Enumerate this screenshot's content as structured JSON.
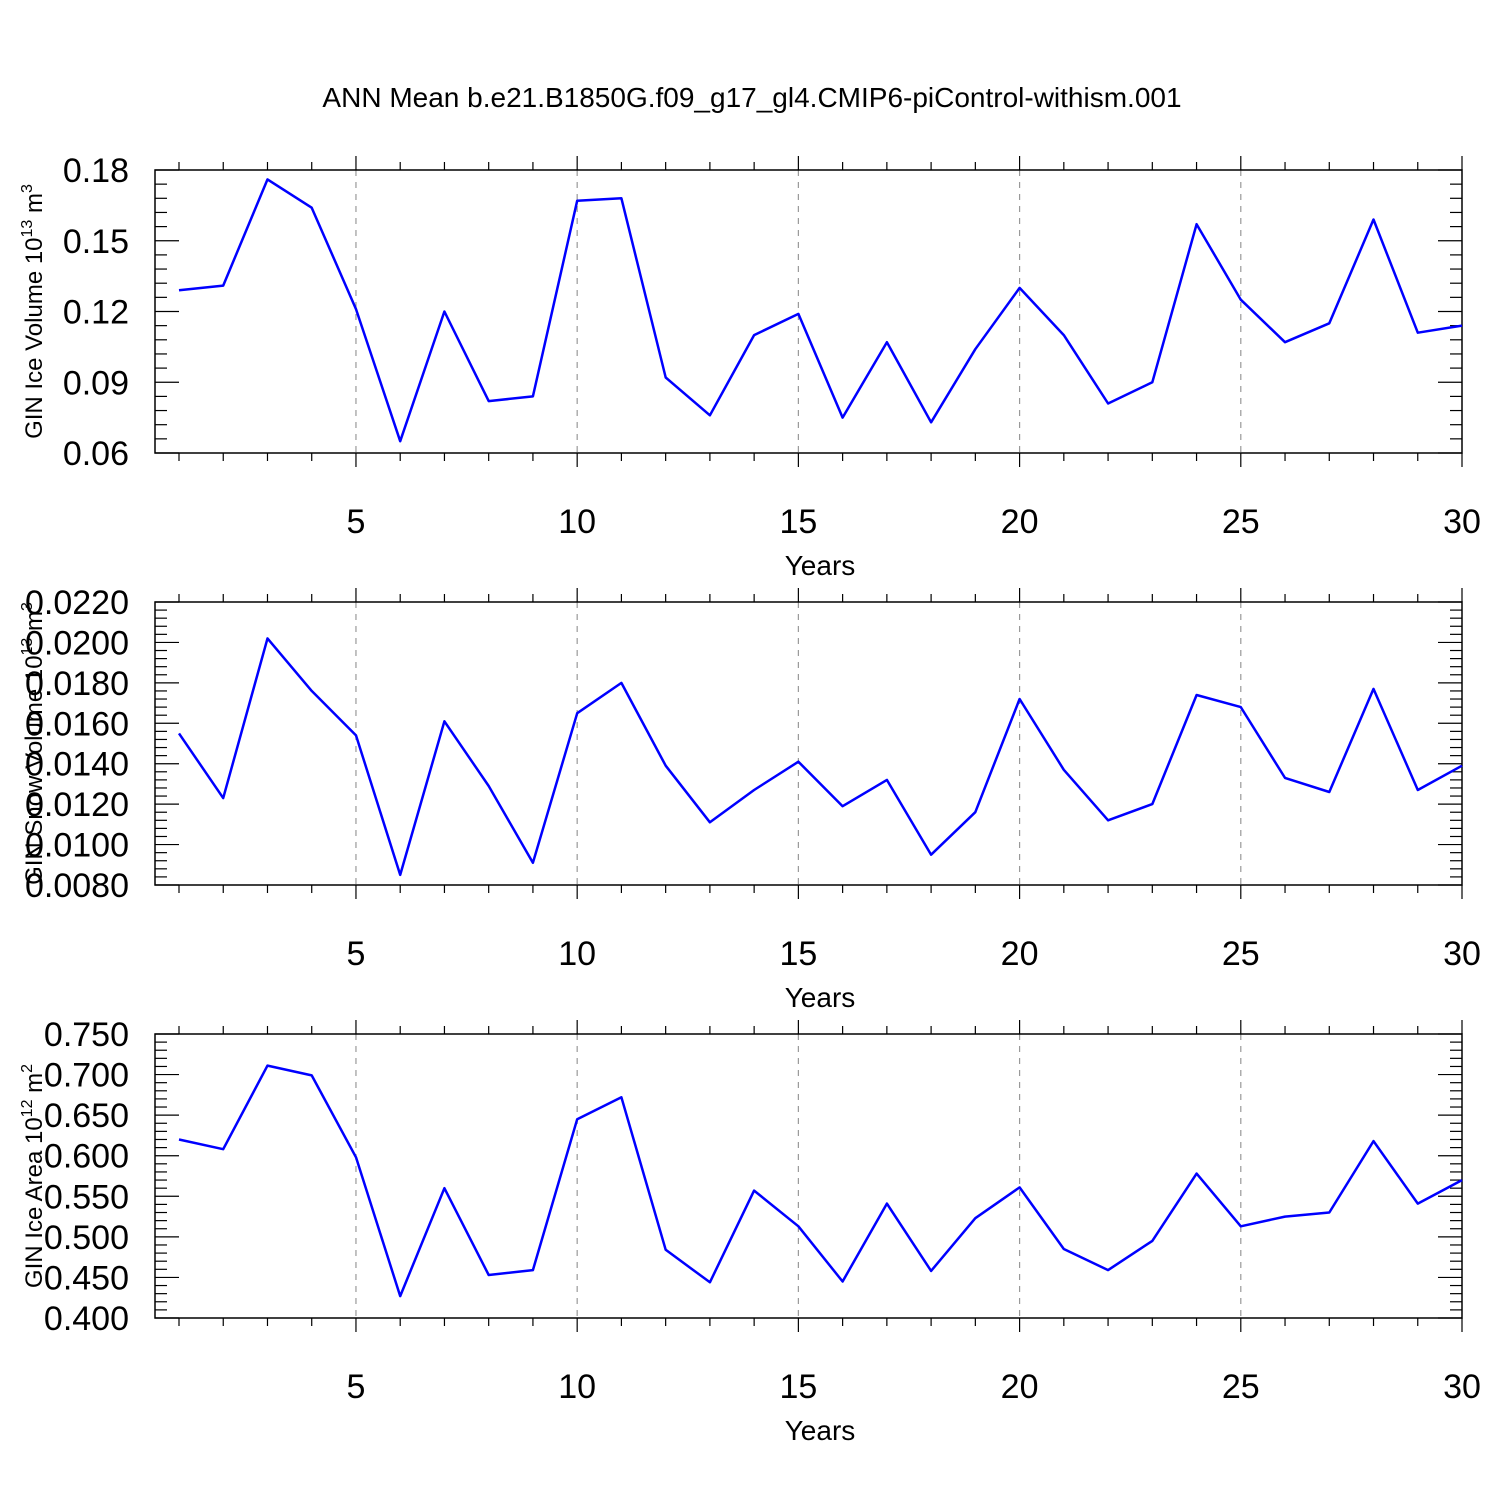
{
  "title": "ANN Mean b.e21.B1850G.f09_g17_gl4.CMIP6-piControl-withism.001",
  "series_color": "#0000ff",
  "chart_data": [
    {
      "type": "line",
      "title": "ANN Mean b.e21.B1850G.f09_g17_gl4.CMIP6-piControl-withism.001",
      "xlabel": "Years",
      "ylabel": "GIN Ice Volume 10",
      "ylabel_sup1": "13",
      "ylabel_mid": " m",
      "ylabel_sup2": "3",
      "x_ticks": [
        5,
        10,
        15,
        20,
        25,
        30
      ],
      "xlim": [
        1,
        30
      ],
      "ylim": [
        0.06,
        0.18
      ],
      "y_ticks": [
        "0.06",
        "0.09",
        "0.12",
        "0.15",
        "0.18"
      ],
      "grid": "dashed vertical at x ticks",
      "x": [
        1,
        2,
        3,
        4,
        5,
        6,
        7,
        8,
        9,
        10,
        11,
        12,
        13,
        14,
        15,
        16,
        17,
        18,
        19,
        20,
        21,
        22,
        23,
        24,
        25,
        26,
        27,
        28,
        29,
        30
      ],
      "values": [
        0.129,
        0.131,
        0.176,
        0.164,
        0.121,
        0.065,
        0.12,
        0.082,
        0.084,
        0.167,
        0.168,
        0.092,
        0.076,
        0.11,
        0.119,
        0.075,
        0.107,
        0.073,
        0.104,
        0.13,
        0.11,
        0.081,
        0.09,
        0.157,
        0.125,
        0.107,
        0.115,
        0.159,
        0.111,
        0.114
      ]
    },
    {
      "type": "line",
      "xlabel": "Years",
      "ylabel": "GIN Snow Volume 10",
      "ylabel_sup1": "13",
      "ylabel_mid": " m",
      "ylabel_sup2": "3",
      "x_ticks": [
        5,
        10,
        15,
        20,
        25,
        30
      ],
      "xlim": [
        1,
        30
      ],
      "ylim": [
        0.008,
        0.022
      ],
      "y_ticks": [
        "0.0080",
        "0.0100",
        "0.0120",
        "0.0140",
        "0.0160",
        "0.0180",
        "0.0200",
        "0.0220"
      ],
      "grid": "dashed vertical at x ticks",
      "x": [
        1,
        2,
        3,
        4,
        5,
        6,
        7,
        8,
        9,
        10,
        11,
        12,
        13,
        14,
        15,
        16,
        17,
        18,
        19,
        20,
        21,
        22,
        23,
        24,
        25,
        26,
        27,
        28,
        29,
        30
      ],
      "values": [
        0.0155,
        0.0123,
        0.0202,
        0.0176,
        0.0154,
        0.0085,
        0.0161,
        0.0129,
        0.0091,
        0.0165,
        0.018,
        0.0139,
        0.0111,
        0.0127,
        0.0141,
        0.0119,
        0.0132,
        0.0095,
        0.0116,
        0.0172,
        0.0137,
        0.0112,
        0.012,
        0.0174,
        0.0168,
        0.0133,
        0.0126,
        0.0177,
        0.0127,
        0.0139
      ]
    },
    {
      "type": "line",
      "xlabel": "Years",
      "ylabel": "GIN Ice Area 10",
      "ylabel_sup1": "12",
      "ylabel_mid": " m",
      "ylabel_sup2": "2",
      "x_ticks": [
        5,
        10,
        15,
        20,
        25,
        30
      ],
      "xlim": [
        1,
        30
      ],
      "ylim": [
        0.4,
        0.75
      ],
      "y_ticks": [
        "0.400",
        "0.450",
        "0.500",
        "0.550",
        "0.600",
        "0.650",
        "0.700",
        "0.750"
      ],
      "grid": "dashed vertical at x ticks",
      "x": [
        1,
        2,
        3,
        4,
        5,
        6,
        7,
        8,
        9,
        10,
        11,
        12,
        13,
        14,
        15,
        16,
        17,
        18,
        19,
        20,
        21,
        22,
        23,
        24,
        25,
        26,
        27,
        28,
        29,
        30
      ],
      "values": [
        0.62,
        0.608,
        0.711,
        0.699,
        0.598,
        0.427,
        0.56,
        0.453,
        0.459,
        0.645,
        0.672,
        0.484,
        0.444,
        0.557,
        0.513,
        0.445,
        0.541,
        0.458,
        0.523,
        0.561,
        0.485,
        0.459,
        0.495,
        0.578,
        0.513,
        0.525,
        0.53,
        0.618,
        0.541,
        0.57
      ]
    }
  ]
}
